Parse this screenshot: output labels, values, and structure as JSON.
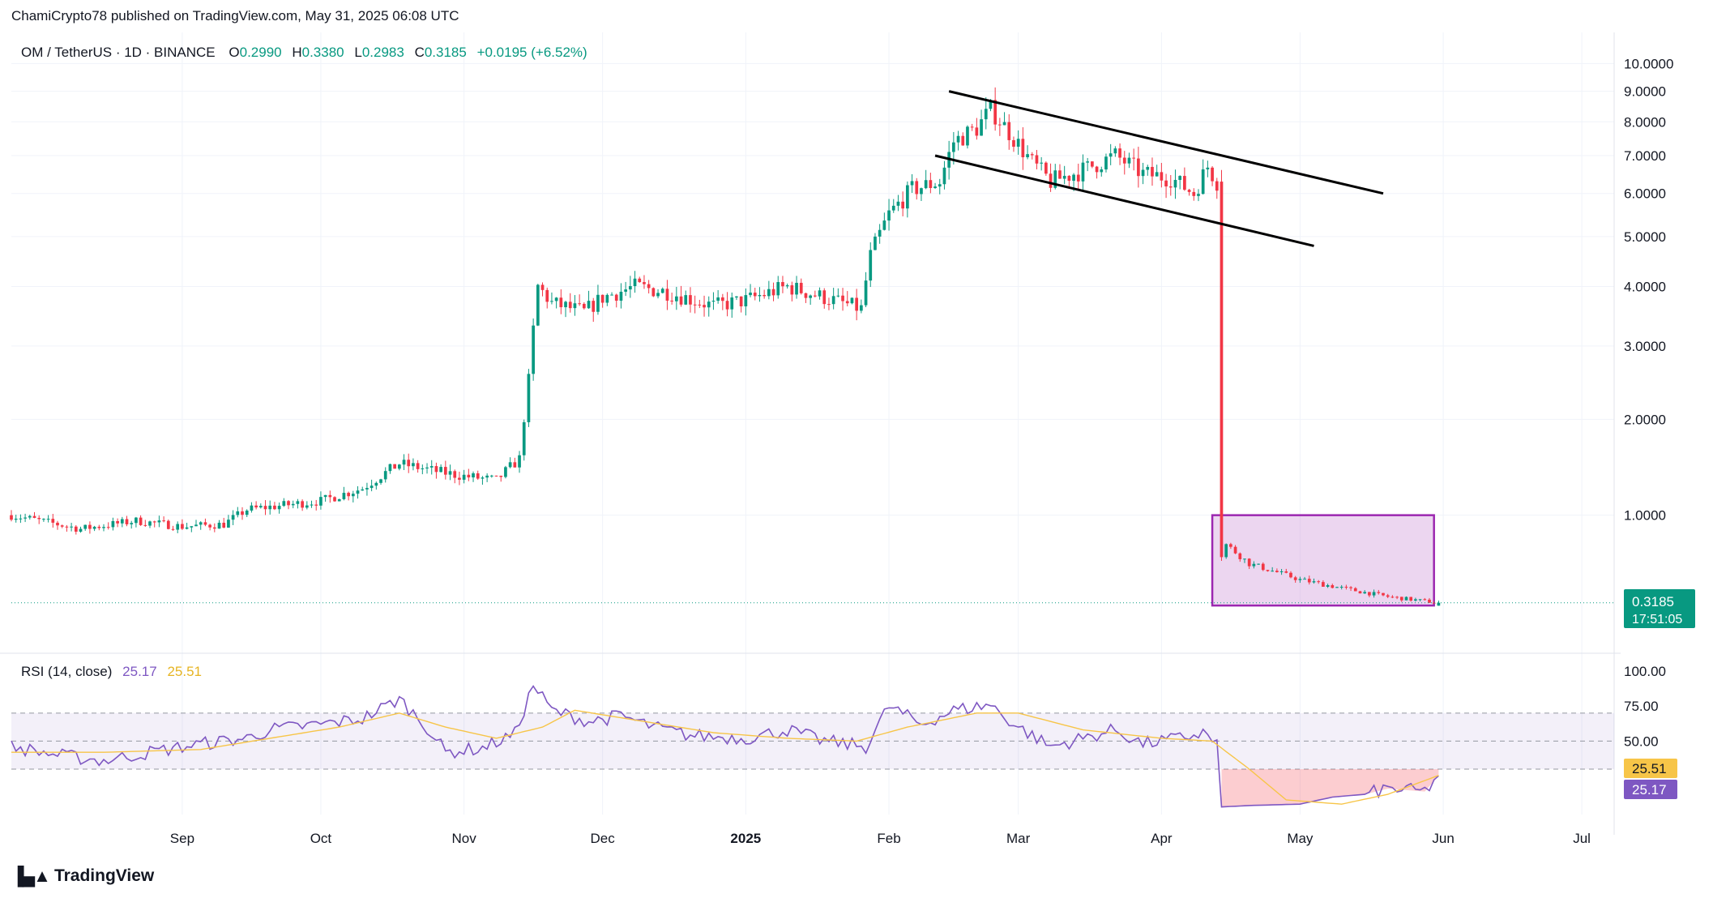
{
  "header": {
    "published": "ChamiCrypto78 published on TradingView.com, May 31, 2025 06:08 UTC"
  },
  "symbol_line": {
    "symbol": "OM / TetherUS · 1D · BINANCE",
    "o_label": "O",
    "o_value": "0.2990",
    "h_label": "H",
    "h_value": "0.3380",
    "l_label": "L",
    "l_value": "0.2983",
    "c_label": "C",
    "c_value": "0.3185",
    "change": "+0.0195 (+6.52%)"
  },
  "price_badge": {
    "price": "0.3185",
    "countdown": "17:51:05"
  },
  "rsi_legend": {
    "label": "RSI (14, close)",
    "rsi_value": "25.17",
    "ma_value": "25.51"
  },
  "rsi_badges": {
    "ma": "25.51",
    "rsi": "25.17"
  },
  "footer": {
    "brand": "TradingView",
    "logo_icon": "tradingview-logo-icon"
  },
  "colors": {
    "up": "#089981",
    "down": "#f23645",
    "rsi": "#7e57c2",
    "rsi_ma": "#f7c548",
    "box": "#9c27b0",
    "badge_green": "#089981"
  },
  "chart_data": [
    {
      "type": "candlestick",
      "scale": "log",
      "price_axis_ticks": [
        "10.0000",
        "9.0000",
        "8.0000",
        "7.0000",
        "6.0000",
        "5.0000",
        "4.0000",
        "3.0000",
        "2.0000",
        "1.0000"
      ],
      "price_axis_values": [
        10,
        9,
        8,
        7,
        6,
        5,
        4,
        3,
        2,
        1
      ],
      "time_axis_ticks": [
        "Sep",
        "Oct",
        "Nov",
        "Dec",
        "2025",
        "Feb",
        "Mar",
        "Apr",
        "May",
        "Jun",
        "Jul"
      ],
      "time_axis_dates": [
        "2024-09-01",
        "2024-10-01",
        "2024-11-01",
        "2024-12-01",
        "2025-01-01",
        "2025-02-01",
        "2025-03-01",
        "2025-04-01",
        "2025-05-01",
        "2025-06-01",
        "2025-07-01"
      ],
      "x_range": [
        "2024-07-26",
        "2025-07-08"
      ],
      "price_path": [
        [
          "2024-07-26",
          1.0
        ],
        [
          "2024-08-10",
          0.88
        ],
        [
          "2024-08-22",
          0.95
        ],
        [
          "2024-09-01",
          0.9
        ],
        [
          "2024-09-10",
          0.92
        ],
        [
          "2024-09-15",
          1.05
        ],
        [
          "2024-10-01",
          1.13
        ],
        [
          "2024-10-10",
          1.25
        ],
        [
          "2024-10-18",
          1.5
        ],
        [
          "2024-10-26",
          1.42
        ],
        [
          "2024-11-01",
          1.37
        ],
        [
          "2024-11-08",
          1.33
        ],
        [
          "2024-11-13",
          1.55
        ],
        [
          "2024-11-15",
          2.5
        ],
        [
          "2024-11-17",
          4.0
        ],
        [
          "2024-11-20",
          3.7
        ],
        [
          "2024-11-27",
          3.55
        ],
        [
          "2024-12-01",
          3.8
        ],
        [
          "2024-12-08",
          4.0
        ],
        [
          "2024-12-15",
          3.9
        ],
        [
          "2024-12-25",
          3.65
        ],
        [
          "2025-01-01",
          3.75
        ],
        [
          "2025-01-10",
          4.0
        ],
        [
          "2025-01-18",
          3.8
        ],
        [
          "2025-01-26",
          3.6
        ],
        [
          "2025-01-28",
          4.6
        ],
        [
          "2025-02-01",
          5.5
        ],
        [
          "2025-02-06",
          6.1
        ],
        [
          "2025-02-12",
          6.3
        ],
        [
          "2025-02-15",
          7.4
        ],
        [
          "2025-02-20",
          7.8
        ],
        [
          "2025-02-23",
          8.4
        ],
        [
          "2025-02-28",
          7.5
        ],
        [
          "2025-03-04",
          6.8
        ],
        [
          "2025-03-08",
          6.3
        ],
        [
          "2025-03-15",
          6.6
        ],
        [
          "2025-03-22",
          7.0
        ],
        [
          "2025-03-28",
          6.5
        ],
        [
          "2025-04-03",
          6.4
        ],
        [
          "2025-04-08",
          6.0
        ],
        [
          "2025-04-11",
          6.7
        ],
        [
          "2025-04-13",
          6.3
        ],
        [
          "2025-04-14",
          0.65
        ],
        [
          "2025-04-15",
          0.75
        ],
        [
          "2025-04-20",
          0.6
        ],
        [
          "2025-05-01",
          0.48
        ],
        [
          "2025-05-10",
          0.42
        ],
        [
          "2025-05-20",
          0.36
        ],
        [
          "2025-05-31",
          0.3185
        ]
      ],
      "trendlines": [
        {
          "name": "upper",
          "from": [
            "2025-02-14",
            9.0
          ],
          "to": [
            "2025-05-19",
            6.0
          ]
        },
        {
          "name": "lower",
          "from": [
            "2025-02-11",
            7.0
          ],
          "to": [
            "2025-05-04",
            4.8
          ]
        }
      ],
      "zone_box": {
        "from_date": "2025-04-12",
        "to_date": "2025-05-30",
        "top": 1.0,
        "bottom": 0.3
      },
      "last_price": 0.3185
    },
    {
      "type": "line",
      "title": "RSI (14, close)",
      "y_axis_ticks": [
        "100.00",
        "75.00",
        "50.00"
      ],
      "y_axis_values": [
        100,
        75,
        50
      ],
      "bands": [
        30,
        50,
        70
      ],
      "series": [
        {
          "name": "RSI",
          "color": "#7e57c2",
          "points": [
            [
              "2024-07-26",
              46
            ],
            [
              "2024-08-05",
              40
            ],
            [
              "2024-08-15",
              36
            ],
            [
              "2024-08-25",
              42
            ],
            [
              "2024-09-05",
              48
            ],
            [
              "2024-09-15",
              52
            ],
            [
              "2024-09-20",
              58
            ],
            [
              "2024-10-01",
              62
            ],
            [
              "2024-10-10",
              66
            ],
            [
              "2024-10-18",
              80
            ],
            [
              "2024-10-24",
              60
            ],
            [
              "2024-10-28",
              42
            ],
            [
              "2024-11-05",
              45
            ],
            [
              "2024-11-12",
              55
            ],
            [
              "2024-11-16",
              90
            ],
            [
              "2024-11-20",
              72
            ],
            [
              "2024-11-28",
              64
            ],
            [
              "2024-12-05",
              68
            ],
            [
              "2024-12-12",
              60
            ],
            [
              "2024-12-20",
              54
            ],
            [
              "2025-01-01",
              52
            ],
            [
              "2025-01-10",
              58
            ],
            [
              "2025-01-18",
              50
            ],
            [
              "2025-01-27",
              46
            ],
            [
              "2025-02-01",
              75
            ],
            [
              "2025-02-08",
              62
            ],
            [
              "2025-02-15",
              72
            ],
            [
              "2025-02-23",
              76
            ],
            [
              "2025-02-28",
              62
            ],
            [
              "2025-03-08",
              46
            ],
            [
              "2025-03-15",
              52
            ],
            [
              "2025-03-22",
              58
            ],
            [
              "2025-03-28",
              48
            ],
            [
              "2025-04-05",
              52
            ],
            [
              "2025-04-10",
              56
            ],
            [
              "2025-04-13",
              48
            ],
            [
              "2025-04-14",
              3
            ],
            [
              "2025-04-20",
              4
            ],
            [
              "2025-05-01",
              5
            ],
            [
              "2025-05-08",
              10
            ],
            [
              "2025-05-15",
              12
            ],
            [
              "2025-05-20",
              16
            ],
            [
              "2025-05-28",
              14
            ],
            [
              "2025-05-31",
              25.17
            ]
          ]
        },
        {
          "name": "RSI-based MA",
          "color": "#f7c548",
          "points": [
            [
              "2024-07-26",
              42
            ],
            [
              "2024-08-15",
              42
            ],
            [
              "2024-09-05",
              44
            ],
            [
              "2024-09-20",
              52
            ],
            [
              "2024-10-05",
              60
            ],
            [
              "2024-10-18",
              70
            ],
            [
              "2024-10-28",
              60
            ],
            [
              "2024-11-08",
              52
            ],
            [
              "2024-11-18",
              60
            ],
            [
              "2024-11-25",
              72
            ],
            [
              "2024-12-10",
              64
            ],
            [
              "2024-12-25",
              56
            ],
            [
              "2025-01-10",
              52
            ],
            [
              "2025-01-25",
              50
            ],
            [
              "2025-02-05",
              60
            ],
            [
              "2025-02-20",
              70
            ],
            [
              "2025-03-01",
              70
            ],
            [
              "2025-03-15",
              58
            ],
            [
              "2025-04-01",
              52
            ],
            [
              "2025-04-12",
              50
            ],
            [
              "2025-04-20",
              30
            ],
            [
              "2025-04-28",
              8
            ],
            [
              "2025-05-10",
              5
            ],
            [
              "2025-05-20",
              12
            ],
            [
              "2025-05-31",
              25.51
            ]
          ]
        }
      ]
    }
  ]
}
